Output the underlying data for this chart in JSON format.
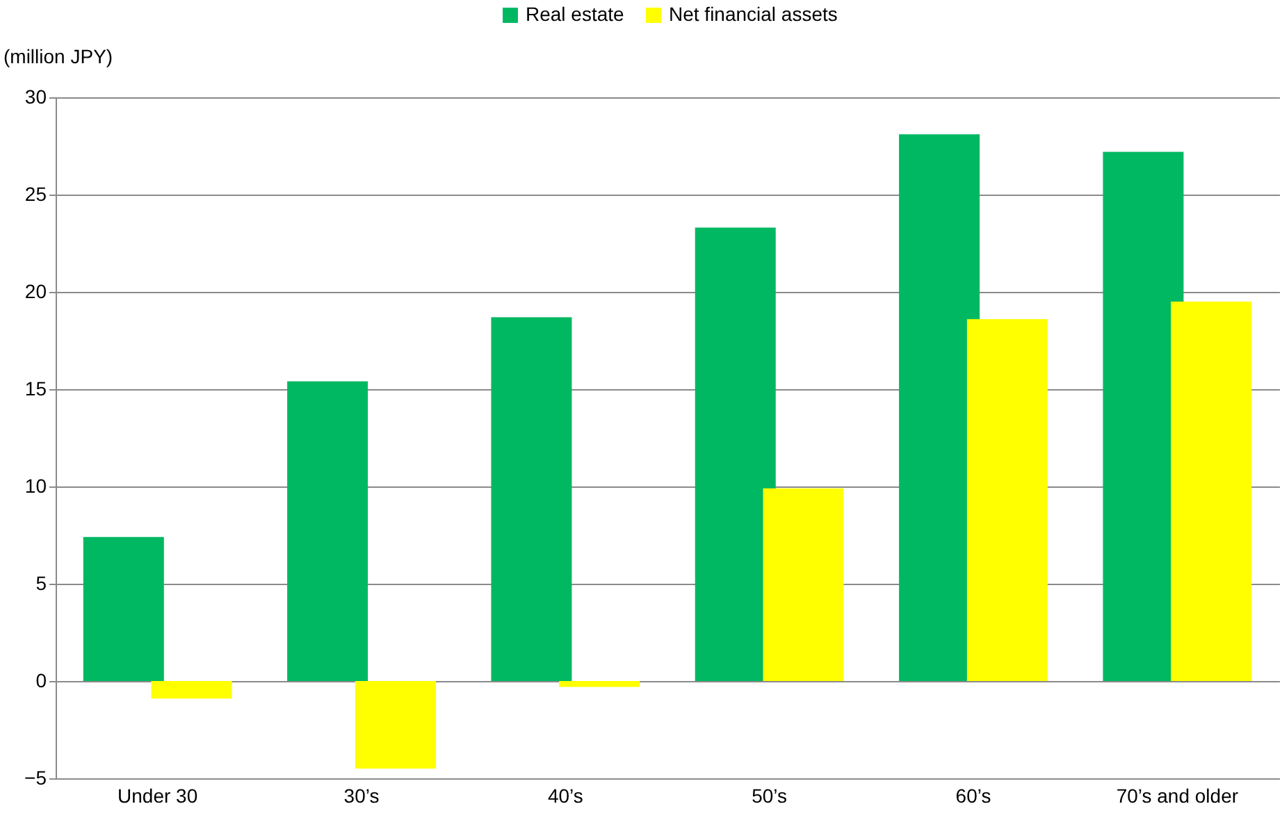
{
  "chart_data": {
    "type": "bar",
    "ylabel": "(million JPY)",
    "categories": [
      "Under 30",
      "30’s",
      "40’s",
      "50’s",
      "60’s",
      "70’s and older"
    ],
    "series": [
      {
        "name": "Real estate",
        "color": "#00b862",
        "values": [
          7.4,
          15.4,
          18.7,
          23.3,
          28.1,
          27.2
        ]
      },
      {
        "name": "Net financial assets",
        "color": "#ffff00",
        "values": [
          -0.9,
          -4.5,
          -0.3,
          9.9,
          18.6,
          19.5
        ]
      }
    ],
    "ylim": [
      -5,
      30
    ],
    "yticks": [
      {
        "value": -5,
        "label": "−5"
      },
      0,
      5,
      10,
      15,
      20,
      25,
      30
    ],
    "grid": "y",
    "legend": "top"
  }
}
